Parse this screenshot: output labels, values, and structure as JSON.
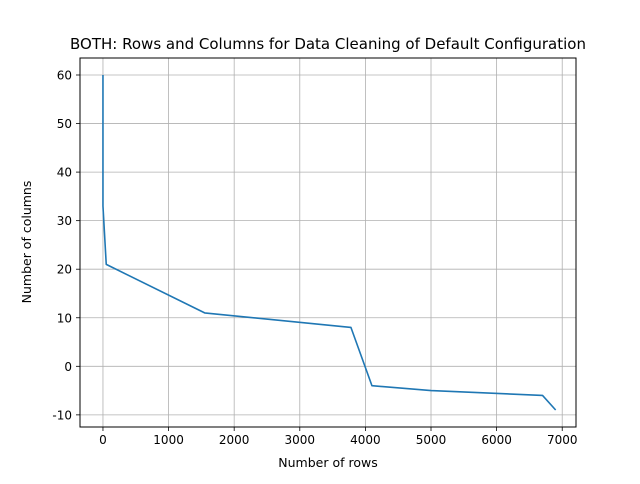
{
  "chart_data": {
    "type": "line",
    "title": "BOTH: Rows and Columns for Data Cleaning of Default Configuration",
    "xlabel": "Number of rows",
    "ylabel": "Number of columns",
    "xlim": [
      -350,
      7210
    ],
    "ylim": [
      -12.5,
      63.5
    ],
    "x_ticks": [
      0,
      1000,
      2000,
      3000,
      4000,
      5000,
      6000,
      7000
    ],
    "y_ticks": [
      -10,
      0,
      10,
      20,
      30,
      40,
      50,
      60
    ],
    "grid": true,
    "line_color": "#1f77b4",
    "series": [
      {
        "x": [
          0,
          0,
          0,
          0,
          0,
          0,
          0,
          50,
          1550,
          3780,
          4100,
          5000,
          6700,
          6900
        ],
        "y": [
          60,
          55,
          50,
          45,
          40,
          36,
          33,
          21,
          11,
          8,
          -4,
          -5,
          -6,
          -9
        ]
      }
    ]
  }
}
